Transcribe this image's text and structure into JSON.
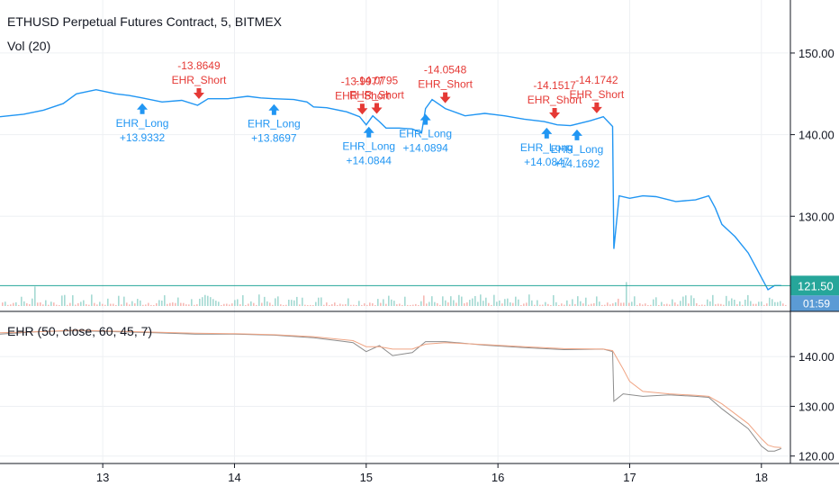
{
  "header": {
    "title": "ETHUSD Perpetual Futures Contract, 5, BITMEX",
    "volume_label": "Vol (20)",
    "indicator_label": "EHR (50, close, 60, 45, 7)"
  },
  "colors": {
    "grid": "#eef0f3",
    "axis": "#131722",
    "text": "#131722",
    "long": "#2196f3",
    "short": "#e53935",
    "price_line": "#2196f3",
    "price_label_bg": "#26a69a",
    "vol_up": "#8fd1c8",
    "vol_down": "#f4a7a2",
    "ehr_fast": "#8c8c8c",
    "ehr_slow": "#f0a483"
  },
  "chart_data": [
    {
      "type": "line",
      "name": "price",
      "title": "ETHUSD Perpetual Futures Contract, 5, BITMEX",
      "x_ticks": [
        {
          "x": 13,
          "label": "13"
        },
        {
          "x": 14,
          "label": "14"
        },
        {
          "x": 15,
          "label": "15"
        },
        {
          "x": 16,
          "label": "16"
        },
        {
          "x": 17,
          "label": "17"
        },
        {
          "x": 18,
          "label": "18"
        }
      ],
      "xlim": [
        12.22,
        18.22
      ],
      "ylim": [
        119.0,
        156.5
      ],
      "y_ticks": [
        {
          "y": 150,
          "label": "150.00"
        },
        {
          "y": 140,
          "label": "140.00"
        },
        {
          "y": 130,
          "label": "130.00"
        }
      ],
      "last_price": {
        "value": 121.5,
        "label": "121.50"
      },
      "countdown": "01:59",
      "series": [
        {
          "name": "close",
          "x": [
            12.22,
            12.4,
            12.55,
            12.7,
            12.8,
            12.95,
            13.1,
            13.2,
            13.3,
            13.45,
            13.6,
            13.72,
            13.8,
            13.95,
            14.1,
            14.2,
            14.3,
            14.45,
            14.55,
            14.6,
            14.7,
            14.85,
            14.95,
            15.0,
            15.05,
            15.1,
            15.15,
            15.25,
            15.35,
            15.42,
            15.45,
            15.5,
            15.6,
            15.75,
            15.9,
            16.05,
            16.2,
            16.35,
            16.45,
            16.55,
            16.7,
            16.8,
            16.87,
            16.88,
            16.92,
            17.0,
            17.1,
            17.2,
            17.35,
            17.5,
            17.6,
            17.65,
            17.7,
            17.8,
            17.9,
            17.95,
            18.0,
            18.05,
            18.1,
            18.15
          ],
          "values": [
            142.2,
            142.5,
            143.0,
            143.8,
            145.0,
            145.5,
            145.0,
            144.8,
            144.5,
            144.0,
            144.2,
            143.6,
            144.4,
            144.4,
            144.7,
            144.5,
            144.4,
            144.3,
            144.0,
            143.4,
            143.3,
            142.8,
            142.2,
            141.2,
            142.3,
            141.6,
            140.8,
            140.8,
            140.7,
            140.2,
            143.2,
            144.3,
            143.2,
            142.3,
            142.6,
            142.3,
            141.9,
            141.6,
            141.2,
            141.1,
            141.7,
            142.2,
            141.0,
            126.0,
            132.5,
            132.2,
            132.5,
            132.4,
            131.8,
            132.0,
            132.5,
            131.0,
            129.0,
            127.5,
            125.5,
            124.0,
            122.5,
            121.0,
            121.5,
            121.5
          ]
        }
      ],
      "signals": [
        {
          "kind": "short",
          "x": 13.73,
          "label": "EHR_Short",
          "value": "-13.8649"
        },
        {
          "kind": "long",
          "x": 13.3,
          "label": "EHR_Long",
          "value": "+13.9332"
        },
        {
          "kind": "long",
          "x": 14.3,
          "label": "EHR_Long",
          "value": "+13.8697"
        },
        {
          "kind": "short",
          "x": 14.97,
          "label": "EHR_Short",
          "value": "-13.9977"
        },
        {
          "kind": "short",
          "x": 15.08,
          "label": "EHR_Short",
          "value": "-14.0795"
        },
        {
          "kind": "long",
          "x": 15.02,
          "label": "EHR_Long",
          "value": "+14.0844"
        },
        {
          "kind": "short",
          "x": 15.6,
          "label": "EHR_Short",
          "value": "-14.0548"
        },
        {
          "kind": "long",
          "x": 15.45,
          "label": "EHR_Long",
          "value": "+14.0894"
        },
        {
          "kind": "short",
          "x": 16.43,
          "label": "EHR_Short",
          "value": "-14.1517"
        },
        {
          "kind": "short",
          "x": 16.75,
          "label": "EHR_Short",
          "value": "-14.1742"
        },
        {
          "kind": "long",
          "x": 16.37,
          "label": "EHR_Long",
          "value": "+14.0847"
        },
        {
          "kind": "long",
          "x": 16.6,
          "label": "EHR_Long",
          "value": "+14.1692"
        }
      ]
    },
    {
      "type": "line",
      "name": "ehr",
      "title": "EHR (50, close, 60, 45, 7)",
      "xlim": [
        12.22,
        18.22
      ],
      "ylim": [
        118.5,
        148.0
      ],
      "y_ticks": [
        {
          "y": 140,
          "label": "140.00"
        },
        {
          "y": 130,
          "label": "130.00"
        },
        {
          "y": 120,
          "label": "120.00"
        }
      ],
      "series": [
        {
          "name": "ehr_fast",
          "x": [
            12.22,
            12.5,
            12.8,
            13.1,
            13.4,
            13.7,
            14.0,
            14.3,
            14.6,
            14.9,
            15.0,
            15.1,
            15.2,
            15.35,
            15.45,
            15.6,
            15.9,
            16.2,
            16.5,
            16.8,
            16.87,
            16.88,
            16.95,
            17.1,
            17.3,
            17.5,
            17.6,
            17.7,
            17.8,
            17.9,
            18.0,
            18.05,
            18.1,
            18.15
          ],
          "values": [
            144.5,
            145.0,
            145.2,
            145.0,
            144.8,
            144.5,
            144.5,
            144.3,
            143.8,
            142.8,
            141.0,
            142.2,
            140.2,
            140.8,
            143.0,
            143.0,
            142.3,
            141.8,
            141.4,
            141.5,
            141.0,
            131.0,
            132.5,
            132.0,
            132.3,
            132.0,
            131.8,
            129.5,
            127.5,
            125.5,
            122.0,
            121.0,
            121.0,
            121.5
          ]
        },
        {
          "name": "ehr_slow",
          "x": [
            12.22,
            12.5,
            12.8,
            13.1,
            13.4,
            13.7,
            14.0,
            14.3,
            14.6,
            14.9,
            15.0,
            15.1,
            15.2,
            15.35,
            15.45,
            15.6,
            15.9,
            16.2,
            16.5,
            16.8,
            16.87,
            16.95,
            17.0,
            17.1,
            17.3,
            17.5,
            17.6,
            17.7,
            17.8,
            17.9,
            18.0,
            18.05,
            18.1,
            18.15
          ],
          "values": [
            144.8,
            145.0,
            145.3,
            145.1,
            144.9,
            144.7,
            144.6,
            144.4,
            144.0,
            143.2,
            142.0,
            142.0,
            141.5,
            141.5,
            142.5,
            142.8,
            142.4,
            142.0,
            141.6,
            141.5,
            141.2,
            137.5,
            135.0,
            133.0,
            132.5,
            132.2,
            132.0,
            130.5,
            128.5,
            126.5,
            123.5,
            122.2,
            121.8,
            121.7
          ]
        }
      ]
    }
  ]
}
